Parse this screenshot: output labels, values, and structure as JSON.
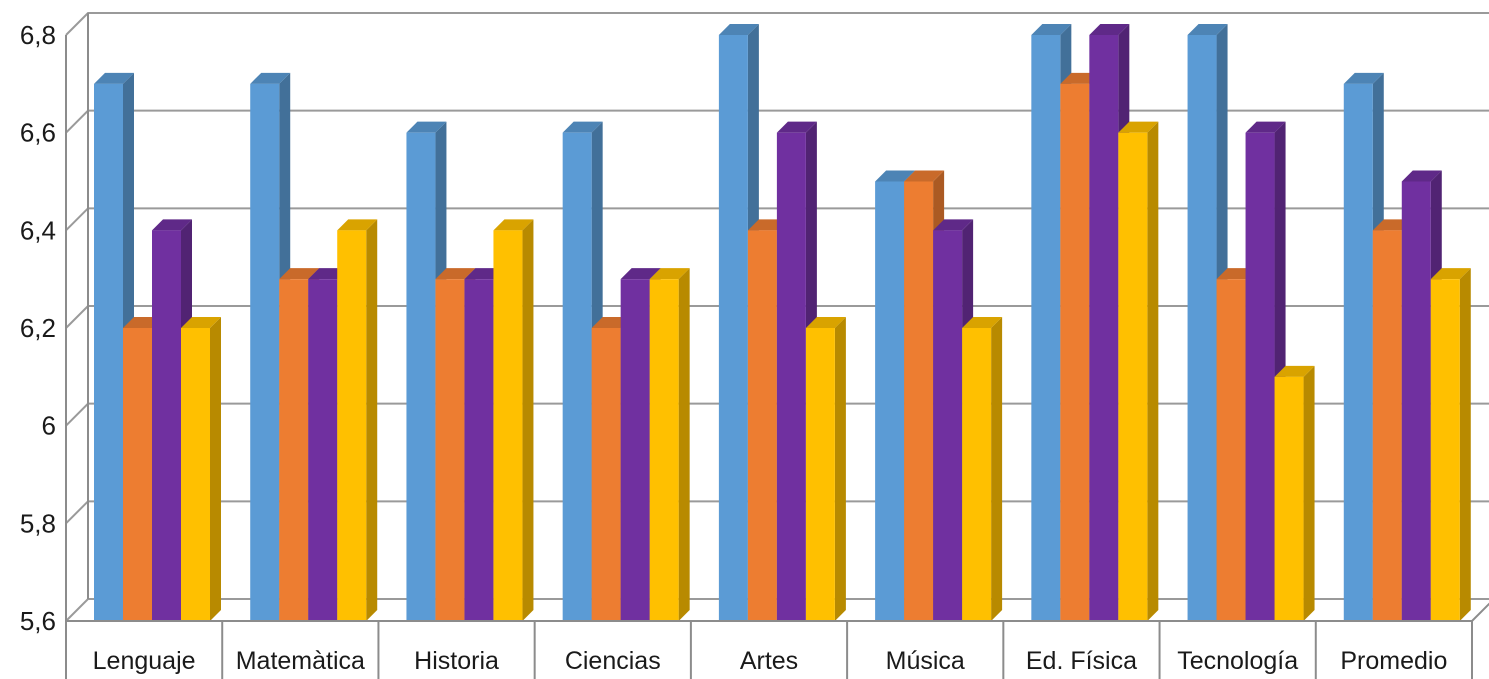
{
  "chart_data": {
    "type": "bar",
    "title": "",
    "xlabel": "",
    "ylabel": "",
    "ylim": [
      5.6,
      6.8
    ],
    "y_ticks": [
      "5,6",
      "5,8",
      "6",
      "6,2",
      "6,4",
      "6,6",
      "6,8"
    ],
    "y_tick_values": [
      5.6,
      5.8,
      6.0,
      6.2,
      6.4,
      6.6,
      6.8
    ],
    "grid": true,
    "legend": "none",
    "style": "3d-clustered-column",
    "categories": [
      "Lenguaje",
      "Matemàtica",
      "Historia",
      "Ciencias",
      "Artes",
      "Música",
      "Ed. Física",
      "Tecnología",
      "Promedio"
    ],
    "series": [
      {
        "values": [
          6.7,
          6.7,
          6.6,
          6.6,
          6.8,
          6.5,
          6.8,
          6.8,
          6.7
        ],
        "color": "#5B9BD5"
      },
      {
        "values": [
          6.2,
          6.3,
          6.3,
          6.2,
          6.4,
          6.5,
          6.7,
          6.3,
          6.4
        ],
        "color": "#ED7D31"
      },
      {
        "values": [
          6.4,
          6.3,
          6.3,
          6.3,
          6.6,
          6.4,
          6.8,
          6.6,
          6.5
        ],
        "color": "#7030A0"
      },
      {
        "values": [
          6.2,
          6.4,
          6.4,
          6.3,
          6.2,
          6.2,
          6.6,
          6.1,
          6.3
        ],
        "color": "#FFC000"
      }
    ]
  }
}
